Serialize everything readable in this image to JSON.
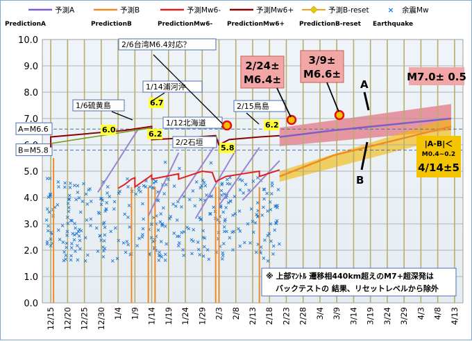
{
  "chart_data": {
    "type": "line",
    "ylim": [
      0.0,
      10.0
    ],
    "yticks": [
      "0.0",
      "1.0",
      "2.0",
      "3.0",
      "4.0",
      "5.0",
      "6.0",
      "7.0",
      "8.0",
      "9.0",
      "10.0"
    ],
    "x_tick_labels": [
      "12/15",
      "12/20",
      "12/25",
      "12/30",
      "1/4",
      "1/9",
      "1/14",
      "1/19",
      "1/24",
      "1/29",
      "2/3",
      "2/8",
      "2/13",
      "2/18",
      "2/23",
      "2/28",
      "3/4",
      "3/9",
      "3/14",
      "3/19",
      "3/24",
      "3/29",
      "4/3",
      "4/8",
      "4/13"
    ],
    "legend": [
      {
        "label": "予測A",
        "sub": "PredictionA",
        "color": "#7b5fc7",
        "style": "line"
      },
      {
        "label": "予測B",
        "sub": "PredictionB",
        "color": "#f08a24",
        "style": "line"
      },
      {
        "label": "予測Mw6-",
        "sub": "PredictionMw6-",
        "color": "#e02020",
        "style": "line"
      },
      {
        "label": "予測Mw6+",
        "sub": "PredictionMw6+",
        "color": "#8b0000",
        "style": "line"
      },
      {
        "label": "予測B-reset",
        "sub": "PredictionB-reset",
        "color": "#f0a020",
        "style": "diamond"
      },
      {
        "label": "余震Mw",
        "sub": "Earthquake",
        "color": "#1f77d0",
        "style": "x"
      }
    ],
    "series": [
      {
        "name": "予測A",
        "x": [
          "2/21",
          "3/9",
          "4/13"
        ],
        "y": [
          6.3,
          6.55,
          7.0
        ]
      },
      {
        "name": "予測B",
        "x": [
          "2/21",
          "3/9",
          "4/13"
        ],
        "y": [
          4.8,
          5.6,
          6.7
        ]
      },
      {
        "name": "予測Mw6+",
        "x": [
          "12/15",
          "1/6",
          "1/14",
          "2/3",
          "2/15",
          "2/21"
        ],
        "y": [
          5.9,
          6.4,
          6.6,
          6.1,
          6.2,
          6.3
        ]
      },
      {
        "name": "予測Mw6-",
        "x": [
          "1/6",
          "1/14",
          "2/2",
          "2/15",
          "2/21"
        ],
        "y": [
          4.4,
          4.9,
          4.9,
          4.8,
          5.1
        ]
      }
    ],
    "reference_lines": [
      {
        "label": "A=M6.6",
        "y": 6.6
      },
      {
        "label": "B=M5.8",
        "y": 5.8
      }
    ],
    "bands": [
      {
        "name": "A",
        "color": "#e24b5b"
      },
      {
        "name": "B",
        "color": "#f5b800"
      }
    ],
    "events": [
      {
        "label": "1/6硫黄島",
        "x": "1/6",
        "mag": "6.0"
      },
      {
        "label": "1/14浦河沖",
        "x": "1/14",
        "mag": "6.7"
      },
      {
        "label": "",
        "x": "1/14",
        "mag": "6.2"
      },
      {
        "label": "1/12北海道",
        "x": "1/12"
      },
      {
        "label": "2/2石垣",
        "x": "2/2",
        "mag": "5.8"
      },
      {
        "label": "2/6台湾M6.4対応？",
        "x": "2/6"
      },
      {
        "label": "2/15鳥島",
        "x": "2/15",
        "mag": "6.2"
      }
    ],
    "predictions": [
      {
        "label": "2/24±\nM6.4±",
        "x": "2/24"
      },
      {
        "label": "3/9±\nM6.6±",
        "x": "3/9"
      }
    ],
    "annotations": {
      "m7": "M7.0± 0.5",
      "ab_diff_line1": "|A-B|＜",
      "ab_diff_line2": "M0.4~0.2",
      "ab_diff_date": "4/14±5",
      "letter_a": "A",
      "letter_b": "B",
      "footnote_line1": "※ 上部ﾏﾝﾄﾙ 遷移相440km超えのM7+超深発は",
      "footnote_line2": "バックテストの 結果、リセットレベルから除外"
    }
  }
}
